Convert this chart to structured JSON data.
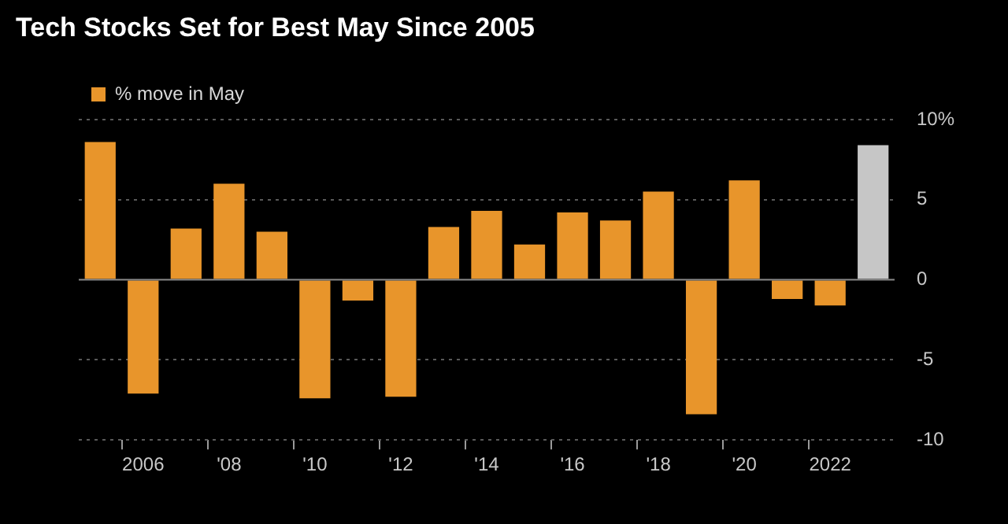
{
  "chart_data": {
    "type": "bar",
    "title": "Tech Stocks Set for Best May Since 2005",
    "categories": [
      null,
      "2006",
      null,
      "'08",
      null,
      "'10",
      null,
      "'12",
      null,
      "'14",
      null,
      "'16",
      null,
      "'18",
      null,
      "'20",
      null,
      "2022",
      null
    ],
    "series": [
      {
        "name": "% move in May",
        "color": "#e8952b",
        "colors": [
          "#e8952b",
          "#e8952b",
          "#e8952b",
          "#e8952b",
          "#e8952b",
          "#e8952b",
          "#e8952b",
          "#e8952b",
          "#e8952b",
          "#e8952b",
          "#e8952b",
          "#e8952b",
          "#e8952b",
          "#e8952b",
          "#e8952b",
          "#e8952b",
          "#e8952b",
          "#e8952b",
          "#c6c6c6"
        ],
        "values": [
          8.6,
          -7.1,
          3.2,
          6.0,
          3.0,
          -7.4,
          -1.3,
          -7.3,
          3.3,
          4.3,
          2.2,
          4.2,
          3.7,
          5.5,
          -8.4,
          6.2,
          -1.2,
          -1.6,
          8.4
        ]
      }
    ],
    "ylim": [
      -10,
      10
    ],
    "yticks": [
      {
        "value": -10,
        "label": "-10"
      },
      {
        "value": -5,
        "label": "-5"
      },
      0,
      5,
      {
        "value": 10,
        "label": "10%"
      }
    ],
    "grid": "y",
    "legend": "top left"
  }
}
